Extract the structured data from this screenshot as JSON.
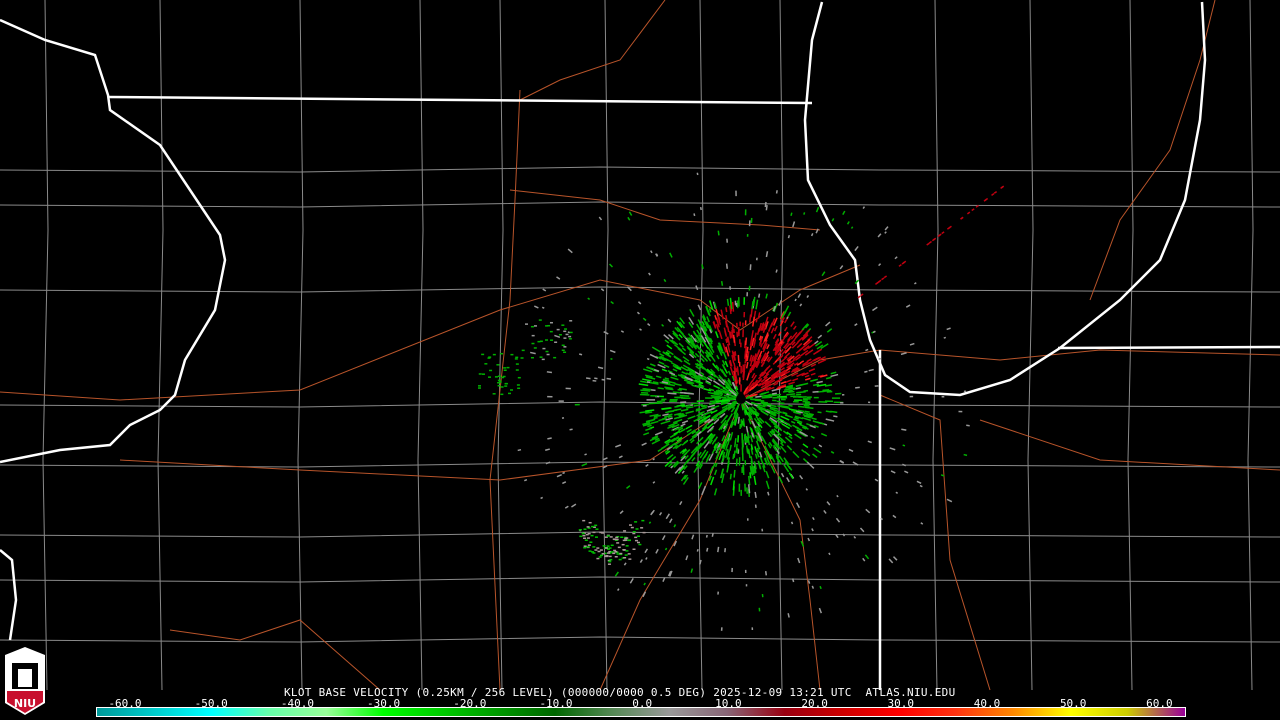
{
  "product": {
    "title": "KLOT BASE VELOCITY (0.25KM / 256 LEVEL) (000000/0000 0.5 DEG) 2025-12-09 13:21 UTC  ATLAS.NIU.EDU"
  },
  "logo": {
    "text": "NIU"
  },
  "legend": {
    "ticks": [
      "-60.0",
      "-50.0",
      "-40.0",
      "-30.0",
      "-20.0",
      "-10.0",
      "0.0",
      "10.0",
      "20.0",
      "30.0",
      "40.0",
      "50.0",
      "60.0"
    ],
    "colors": [
      "#009999",
      "#00cccc",
      "#00ffff",
      "#66ffaa",
      "#99ff99",
      "#00ff00",
      "#00cc00",
      "#009900",
      "#006600",
      "#558855",
      "#999999",
      "#886677",
      "#990011",
      "#cc0000",
      "#ff0000",
      "#ff3311",
      "#ff8800",
      "#ffff00",
      "#cccc00",
      "#990099"
    ]
  },
  "map": {
    "state_border_color": "#ffffff",
    "county_color": "#8a8a8a",
    "road_color": "#b8542a",
    "inbound_color": "#00b000",
    "outbound_color": "#c00010"
  }
}
